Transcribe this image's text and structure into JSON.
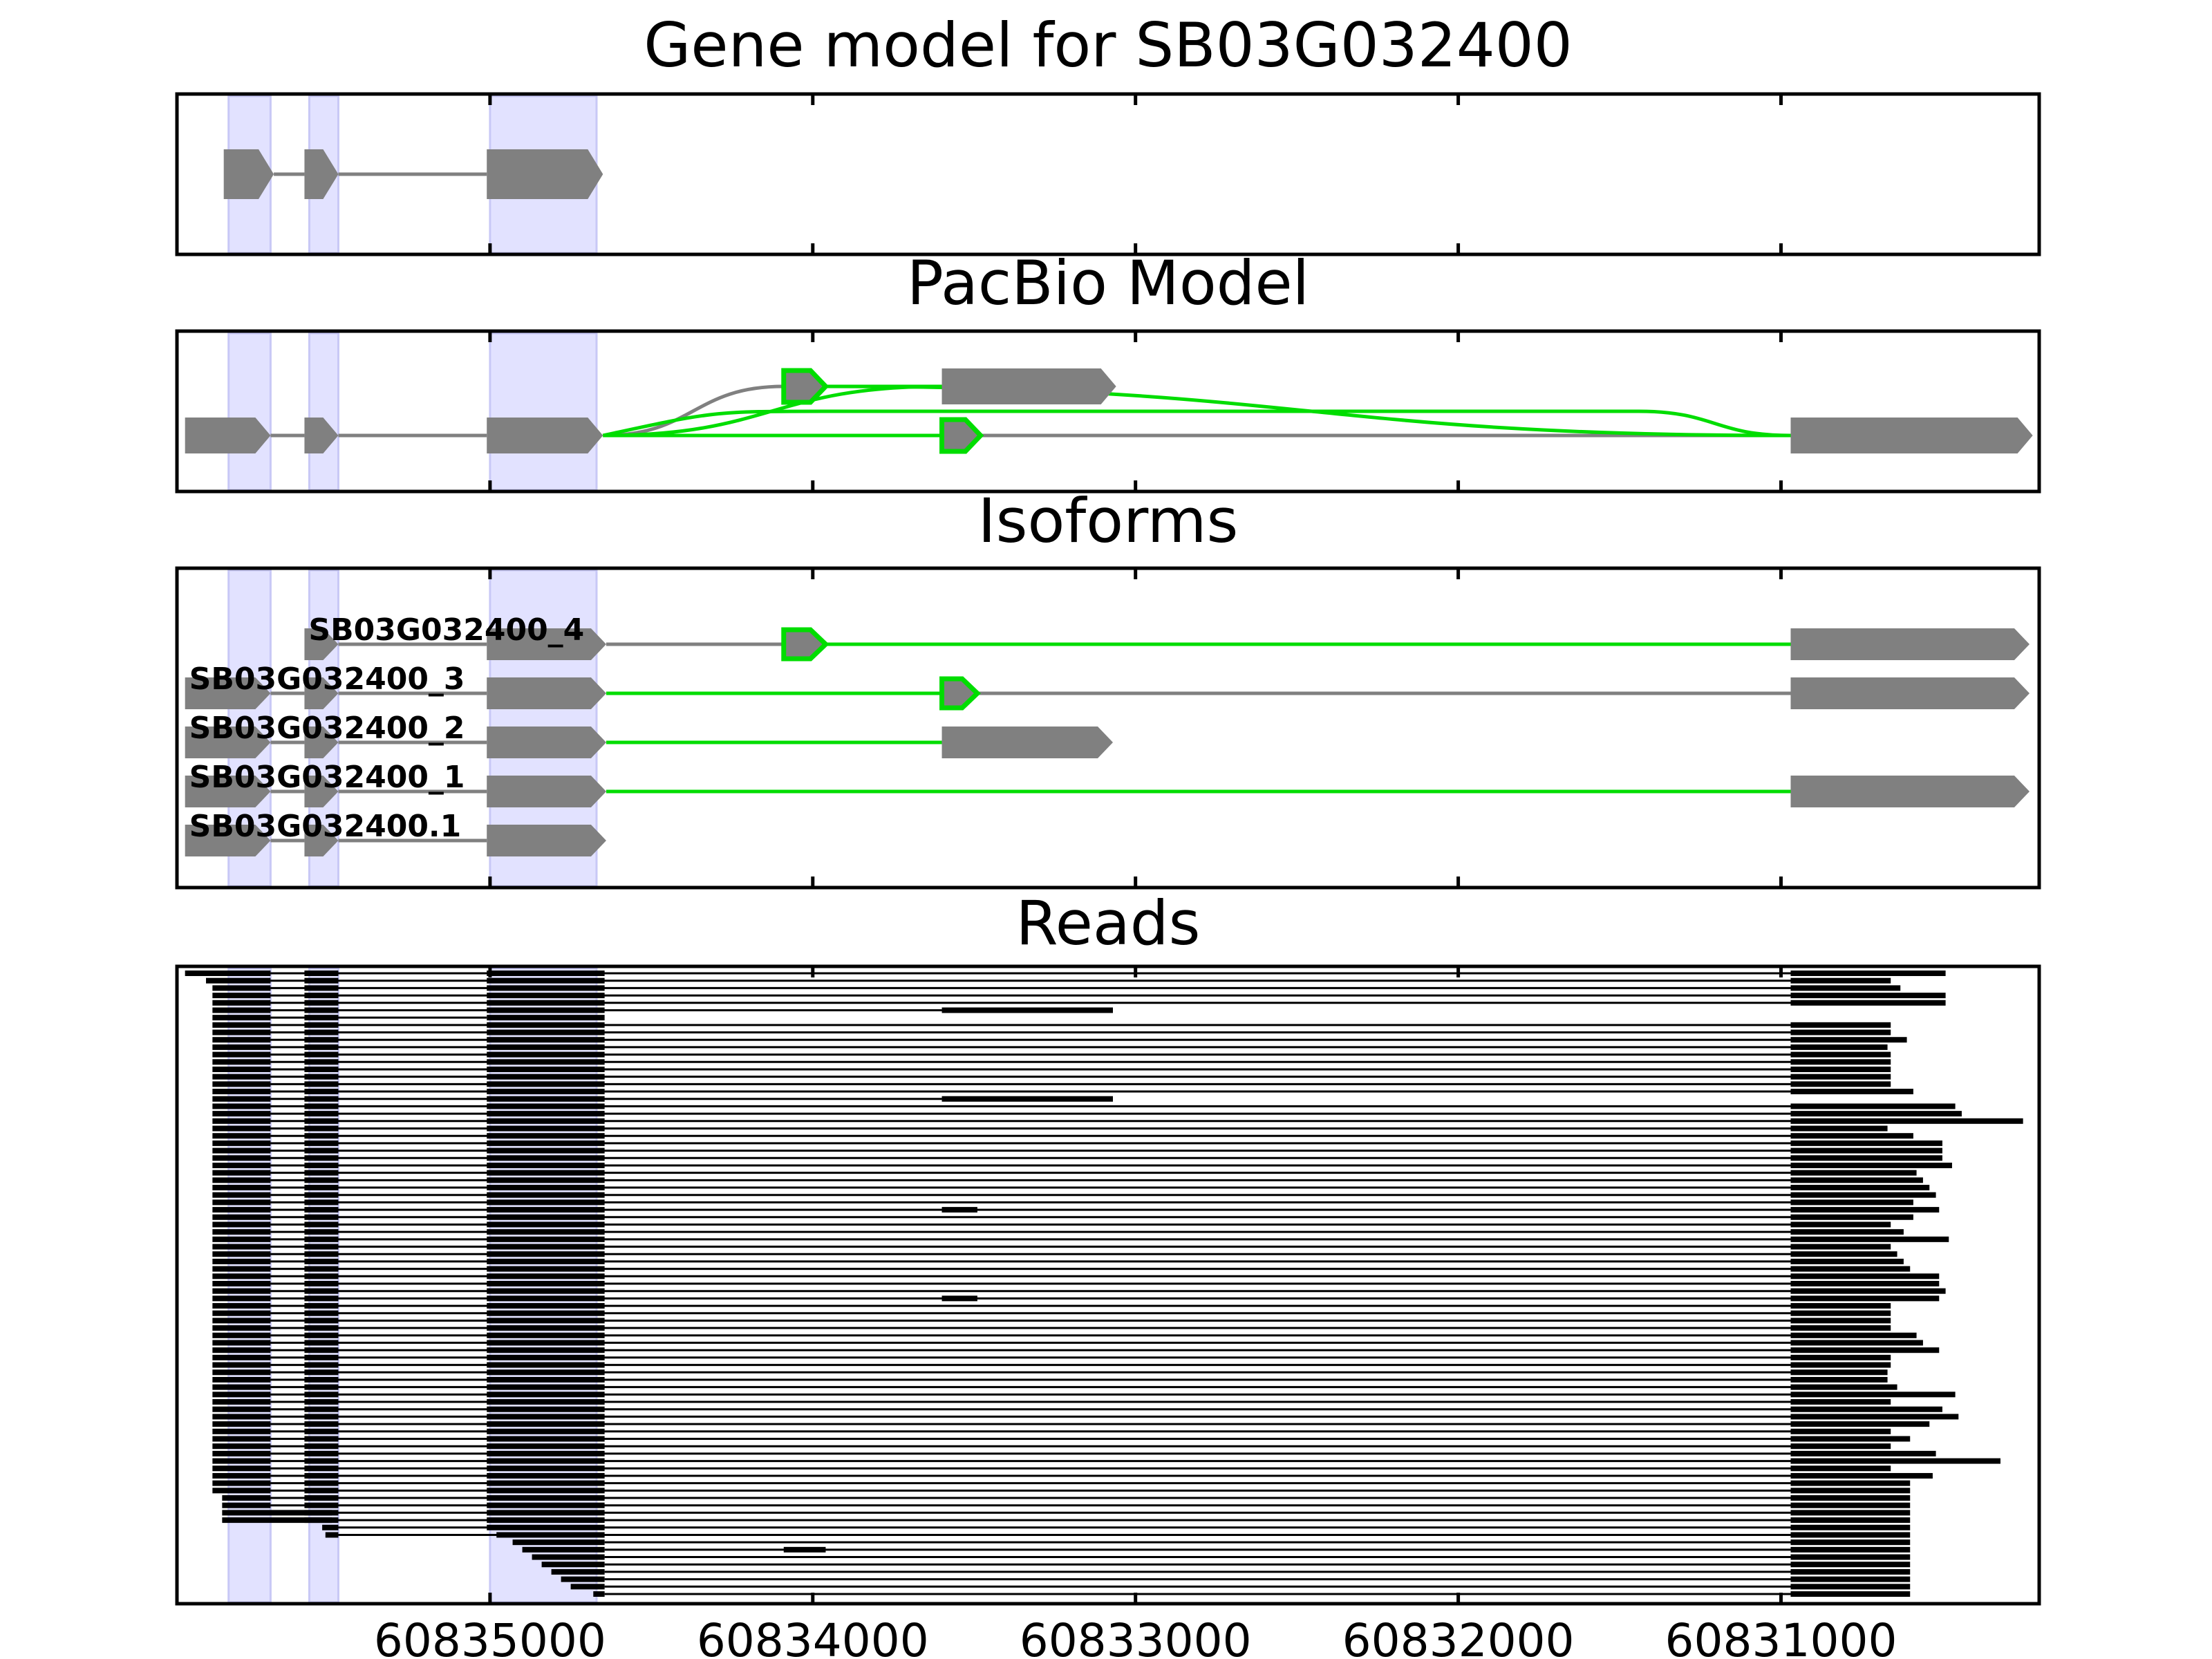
{
  "figure": {
    "panel_titles": [
      "Gene model for SB03G032400",
      "PacBio Model",
      "Isoforms",
      "Reads"
    ]
  },
  "colors": {
    "exon": "#808080",
    "novel_exon": "#00dd00",
    "junction": "#808080",
    "novel_junction": "#00dd00",
    "shade": "#e2e2ff",
    "read": "#000000",
    "frame": "#000000"
  },
  "chart_data": {
    "type": "gene-structure",
    "strand": "reverse",
    "xlim": [
      60835970,
      60830200
    ],
    "xticks": [
      60835000,
      60834000,
      60833000,
      60832000,
      60831000
    ],
    "xtick_labels": [
      "60835000",
      "60834000",
      "60833000",
      "60832000",
      "60831000"
    ],
    "shaded_regions": [
      [
        60835810,
        60835680
      ],
      [
        60835560,
        60835470
      ],
      [
        60835000,
        60834670
      ]
    ],
    "panels": [
      {
        "title": "Gene model for SB03G032400",
        "exons": [
          [
            60835825,
            60835670
          ],
          [
            60835575,
            60835470
          ],
          [
            60835010,
            60834650
          ]
        ]
      },
      {
        "title": "PacBio Model",
        "exons": [
          {
            "start": 60835945,
            "end": 60835680,
            "novel": false,
            "level": 0
          },
          {
            "start": 60835575,
            "end": 60835470,
            "novel": false,
            "level": 0
          },
          {
            "start": 60835010,
            "end": 60834650,
            "novel": false,
            "level": 0
          },
          {
            "start": 60834090,
            "end": 60833960,
            "novel": true,
            "level": 1
          },
          {
            "start": 60833600,
            "end": 60833060,
            "novel": false,
            "level": 1
          },
          {
            "start": 60833600,
            "end": 60833480,
            "novel": true,
            "level": 0
          },
          {
            "start": 60830970,
            "end": 60830220,
            "novel": false,
            "level": 0
          }
        ],
        "junctions": [
          {
            "from": 60835680,
            "to": 60835575,
            "novel": false,
            "from_level": 0,
            "to_level": 0
          },
          {
            "from": 60835470,
            "to": 60835010,
            "novel": false,
            "from_level": 0,
            "to_level": 0
          },
          {
            "from": 60834650,
            "to": 60834090,
            "novel": false,
            "from_level": 0,
            "to_level": 1
          },
          {
            "from": 60834650,
            "to": 60833600,
            "novel": true,
            "from_level": 0,
            "to_level": 1
          },
          {
            "from": 60834650,
            "to": 60833600,
            "novel": true,
            "from_level": 0,
            "to_level": 0
          },
          {
            "from": 60834650,
            "to": 60830970,
            "novel": true,
            "from_level": 0,
            "to_level": 0,
            "via_level": 0.5
          },
          {
            "from": 60833960,
            "to": 60833600,
            "novel": true,
            "from_level": 1,
            "to_level": 1
          },
          {
            "from": 60833480,
            "to": 60830970,
            "novel": false,
            "from_level": 0,
            "to_level": 0
          },
          {
            "from": 60833960,
            "to": 60830970,
            "novel": true,
            "from_level": 1,
            "to_level": 0
          }
        ]
      },
      {
        "title": "Isoforms",
        "isoforms": [
          {
            "name": "SB03G032400_4",
            "exons": [
              {
                "start": 60835575,
                "end": 60835470,
                "novel": false
              },
              {
                "start": 60835010,
                "end": 60834640,
                "novel": false
              },
              {
                "start": 60834090,
                "end": 60833960,
                "novel": true
              },
              {
                "start": 60830970,
                "end": 60830230,
                "novel": false
              }
            ],
            "junctions": [
              {
                "from": 60835470,
                "to": 60835010,
                "novel": false
              },
              {
                "from": 60834640,
                "to": 60834090,
                "novel": false
              },
              {
                "from": 60833960,
                "to": 60830970,
                "novel": true
              }
            ]
          },
          {
            "name": "SB03G032400_3",
            "exons": [
              {
                "start": 60835945,
                "end": 60835680,
                "novel": false
              },
              {
                "start": 60835575,
                "end": 60835470,
                "novel": false
              },
              {
                "start": 60835010,
                "end": 60834640,
                "novel": false
              },
              {
                "start": 60833600,
                "end": 60833490,
                "novel": true
              },
              {
                "start": 60830970,
                "end": 60830230,
                "novel": false
              }
            ],
            "junctions": [
              {
                "from": 60835680,
                "to": 60835575,
                "novel": false
              },
              {
                "from": 60835470,
                "to": 60835010,
                "novel": false
              },
              {
                "from": 60834640,
                "to": 60833600,
                "novel": true
              },
              {
                "from": 60833490,
                "to": 60830970,
                "novel": false
              }
            ]
          },
          {
            "name": "SB03G032400_2",
            "exons": [
              {
                "start": 60835945,
                "end": 60835680,
                "novel": false
              },
              {
                "start": 60835575,
                "end": 60835470,
                "novel": false
              },
              {
                "start": 60835010,
                "end": 60834640,
                "novel": false
              },
              {
                "start": 60833600,
                "end": 60833070,
                "novel": false
              }
            ],
            "junctions": [
              {
                "from": 60835680,
                "to": 60835575,
                "novel": false
              },
              {
                "from": 60835470,
                "to": 60835010,
                "novel": false
              },
              {
                "from": 60834640,
                "to": 60833600,
                "novel": true
              }
            ]
          },
          {
            "name": "SB03G032400_1",
            "exons": [
              {
                "start": 60835945,
                "end": 60835680,
                "novel": false
              },
              {
                "start": 60835575,
                "end": 60835470,
                "novel": false
              },
              {
                "start": 60835010,
                "end": 60834640,
                "novel": false
              },
              {
                "start": 60830970,
                "end": 60830230,
                "novel": false
              }
            ],
            "junctions": [
              {
                "from": 60835680,
                "to": 60835575,
                "novel": false
              },
              {
                "from": 60835470,
                "to": 60835010,
                "novel": false
              },
              {
                "from": 60834640,
                "to": 60830970,
                "novel": true
              }
            ]
          },
          {
            "name": "SB03G032400.1",
            "exons": [
              {
                "start": 60835945,
                "end": 60835680,
                "novel": false
              },
              {
                "start": 60835575,
                "end": 60835470,
                "novel": false
              },
              {
                "start": 60835010,
                "end": 60834640,
                "novel": false
              }
            ],
            "junctions": [
              {
                "from": 60835680,
                "to": 60835575,
                "novel": false
              },
              {
                "from": 60835470,
                "to": 60835010,
                "novel": false
              }
            ]
          }
        ]
      },
      {
        "title": "Reads",
        "exon1_right": 60835680,
        "exon2": [
          60835575,
          60835470
        ],
        "exon3": [
          60835010,
          60834645
        ],
        "last_exon_start": 60830970,
        "reads": [
          {
            "exon1_left": 60835945,
            "last_exon_end": 60830490
          },
          {
            "exon1_left": 60835880,
            "last_exon_end": 60830660
          },
          {
            "exon1_left": 60835860,
            "last_exon_end": 60830630
          },
          {
            "exon1_left": 60835860,
            "last_exon_end": 60830490
          },
          {
            "exon1_left": 60835860,
            "last_exon_end": 60830490
          },
          {
            "exon1_left": 60835860,
            "mid_exon": [
              60833600,
              60833070
            ],
            "last_exon_end": null
          },
          {
            "exon1_left": 60835860,
            "last_exon_end": null
          },
          {
            "exon1_left": 60835860,
            "last_exon_end": 60830660
          },
          {
            "exon1_left": 60835860,
            "last_exon_end": 60830660
          },
          {
            "exon1_left": 60835860,
            "last_exon_end": 60830610
          },
          {
            "exon1_left": 60835860,
            "last_exon_end": 60830670
          },
          {
            "exon1_left": 60835860,
            "last_exon_end": 60830660
          },
          {
            "exon1_left": 60835860,
            "last_exon_end": 60830660
          },
          {
            "exon1_left": 60835860,
            "last_exon_end": 60830660
          },
          {
            "exon1_left": 60835860,
            "last_exon_end": 60830660
          },
          {
            "exon1_left": 60835860,
            "last_exon_end": 60830660
          },
          {
            "exon1_left": 60835860,
            "last_exon_end": 60830590
          },
          {
            "exon1_left": 60835860,
            "mid_exon": [
              60833600,
              60833070
            ],
            "last_exon_end": null
          },
          {
            "exon1_left": 60835860,
            "last_exon_end": 60830460
          },
          {
            "exon1_left": 60835860,
            "last_exon_end": 60830440
          },
          {
            "exon1_left": 60835860,
            "last_exon_end": 60830250
          },
          {
            "exon1_left": 60835860,
            "last_exon_end": 60830670
          },
          {
            "exon1_left": 60835860,
            "last_exon_end": 60830590
          },
          {
            "exon1_left": 60835860,
            "last_exon_end": 60830500
          },
          {
            "exon1_left": 60835860,
            "last_exon_end": 60830500
          },
          {
            "exon1_left": 60835860,
            "last_exon_end": 60830500
          },
          {
            "exon1_left": 60835860,
            "last_exon_end": 60830470
          },
          {
            "exon1_left": 60835860,
            "last_exon_end": 60830580
          },
          {
            "exon1_left": 60835860,
            "last_exon_end": 60830560
          },
          {
            "exon1_left": 60835860,
            "last_exon_end": 60830540
          },
          {
            "exon1_left": 60835860,
            "last_exon_end": 60830520
          },
          {
            "exon1_left": 60835860,
            "last_exon_end": 60830590
          },
          {
            "exon1_left": 60835860,
            "mid_exon": [
              60833600,
              60833490
            ],
            "last_exon_end": 60830510
          },
          {
            "exon1_left": 60835860,
            "last_exon_end": 60830590
          },
          {
            "exon1_left": 60835860,
            "last_exon_end": 60830660
          },
          {
            "exon1_left": 60835860,
            "last_exon_end": 60830620
          },
          {
            "exon1_left": 60835860,
            "last_exon_end": 60830480
          },
          {
            "exon1_left": 60835860,
            "last_exon_end": 60830660
          },
          {
            "exon1_left": 60835860,
            "last_exon_end": 60830640
          },
          {
            "exon1_left": 60835860,
            "last_exon_end": 60830620
          },
          {
            "exon1_left": 60835860,
            "last_exon_end": 60830600
          },
          {
            "exon1_left": 60835860,
            "last_exon_end": 60830510
          },
          {
            "exon1_left": 60835860,
            "last_exon_end": 60830510
          },
          {
            "exon1_left": 60835860,
            "last_exon_end": 60830490
          },
          {
            "exon1_left": 60835860,
            "mid_exon": [
              60833600,
              60833490
            ],
            "last_exon_end": 60830510
          },
          {
            "exon1_left": 60835860,
            "last_exon_end": 60830660
          },
          {
            "exon1_left": 60835860,
            "last_exon_end": 60830660
          },
          {
            "exon1_left": 60835860,
            "last_exon_end": 60830660
          },
          {
            "exon1_left": 60835860,
            "last_exon_end": 60830660
          },
          {
            "exon1_left": 60835860,
            "last_exon_end": 60830580
          },
          {
            "exon1_left": 60835860,
            "last_exon_end": 60830560
          },
          {
            "exon1_left": 60835860,
            "last_exon_end": 60830510
          },
          {
            "exon1_left": 60835860,
            "last_exon_end": 60830660
          },
          {
            "exon1_left": 60835860,
            "last_exon_end": 60830660
          },
          {
            "exon1_left": 60835860,
            "last_exon_end": 60830670
          },
          {
            "exon1_left": 60835860,
            "last_exon_end": 60830670
          },
          {
            "exon1_left": 60835860,
            "last_exon_end": 60830640
          },
          {
            "exon1_left": 60835860,
            "last_exon_end": 60830460
          },
          {
            "exon1_left": 60835860,
            "last_exon_end": 60830660
          },
          {
            "exon1_left": 60835860,
            "last_exon_end": 60830500
          },
          {
            "exon1_left": 60835860,
            "last_exon_end": 60830450
          },
          {
            "exon1_left": 60835860,
            "last_exon_end": 60830540
          },
          {
            "exon1_left": 60835860,
            "last_exon_end": 60830660
          },
          {
            "exon1_left": 60835860,
            "last_exon_end": 60830600
          },
          {
            "exon1_left": 60835860,
            "last_exon_end": 60830660
          },
          {
            "exon1_left": 60835860,
            "last_exon_end": 60830520
          },
          {
            "exon1_left": 60835860,
            "last_exon_end": 60830320
          },
          {
            "exon1_left": 60835860,
            "last_exon_end": 60830660
          },
          {
            "exon1_left": 60835860,
            "last_exon_end": 60830530
          },
          {
            "exon1_left": 60835860,
            "last_exon_end": 60830600
          },
          {
            "exon1_left": 60835860,
            "last_exon_end": 60830600
          },
          {
            "exon1_left": 60835830,
            "last_exon_end": 60830600
          },
          {
            "exon1_left": 60835830,
            "last_exon_end": 60830600
          },
          {
            "exon1_left": 60835830,
            "exon1_right": 60835490,
            "last_exon_end": 60830600
          },
          {
            "exon1_left": 60835830,
            "exon1_right": 60835490,
            "last_exon_end": 60830600
          },
          {
            "exon2_left": 60835520,
            "exon3_left": 60835010,
            "last_exon_end": 60830600
          },
          {
            "exon2_left": 60835510,
            "exon3_left": 60834980,
            "last_exon_end": 60830600
          },
          {
            "exon3_left": 60834930,
            "last_exon_end": 60830600
          },
          {
            "exon3_left": 60834900,
            "mid_exon": [
              60834090,
              60833960
            ],
            "last_exon_end": 60830600
          },
          {
            "exon3_left": 60834870,
            "last_exon_end": 60830600
          },
          {
            "exon3_left": 60834840,
            "last_exon_end": 60830600
          },
          {
            "exon3_left": 60834810,
            "last_exon_end": 60830600
          },
          {
            "exon3_left": 60834780,
            "last_exon_end": 60830600
          },
          {
            "exon3_left": 60834750,
            "last_exon_end": 60830600
          },
          {
            "exon3_left": 60834680,
            "last_exon_end": 60830600
          }
        ]
      }
    ]
  }
}
